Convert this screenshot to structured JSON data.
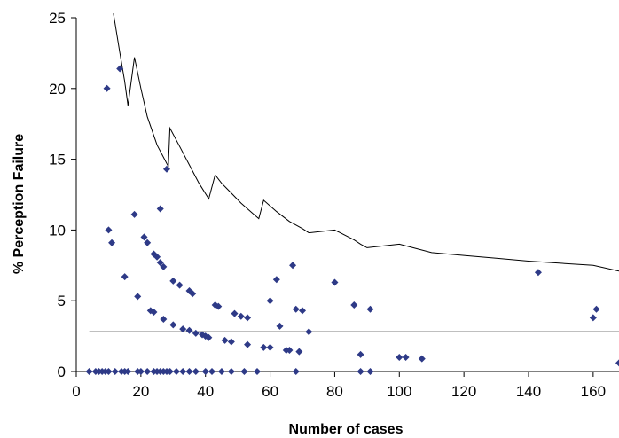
{
  "chart_data": {
    "type": "scatter",
    "title": "",
    "xlabel": "Number of cases",
    "ylabel": "% Perception Failure",
    "xlim": [
      0,
      168
    ],
    "ylim": [
      0,
      25
    ],
    "xticks": [
      0,
      20,
      40,
      60,
      80,
      100,
      120,
      140,
      160
    ],
    "yticks": [
      0,
      5,
      10,
      15,
      20,
      25
    ],
    "grid": false,
    "legend": "none",
    "colors": {
      "points": "#2e3a87",
      "lines": "#000000",
      "axis": "#000000"
    },
    "series": [
      {
        "type": "scatter",
        "points": [
          [
            4,
            0
          ],
          [
            6,
            0
          ],
          [
            7,
            0
          ],
          [
            8,
            0
          ],
          [
            9,
            0
          ],
          [
            10,
            0
          ],
          [
            12,
            0
          ],
          [
            14,
            0
          ],
          [
            15,
            0
          ],
          [
            16,
            0
          ],
          [
            19,
            0
          ],
          [
            20,
            0
          ],
          [
            22,
            0
          ],
          [
            24,
            0
          ],
          [
            25,
            0
          ],
          [
            26,
            0
          ],
          [
            27,
            0
          ],
          [
            28,
            0
          ],
          [
            29,
            0
          ],
          [
            31,
            0
          ],
          [
            33,
            0
          ],
          [
            35,
            0
          ],
          [
            37,
            0
          ],
          [
            40,
            0
          ],
          [
            42,
            0
          ],
          [
            45,
            0
          ],
          [
            48,
            0
          ],
          [
            52,
            0
          ],
          [
            56,
            0
          ],
          [
            68,
            0
          ],
          [
            88,
            0
          ],
          [
            91,
            0
          ],
          [
            9.5,
            20
          ],
          [
            13.5,
            21.4
          ],
          [
            28,
            14.3
          ],
          [
            10,
            10
          ],
          [
            11,
            9.1
          ],
          [
            18,
            11.1
          ],
          [
            26,
            11.5
          ],
          [
            21,
            9.5
          ],
          [
            22,
            9.1
          ],
          [
            24,
            8.3
          ],
          [
            25,
            8.1
          ],
          [
            26,
            7.7
          ],
          [
            27,
            7.4
          ],
          [
            15,
            6.7
          ],
          [
            30,
            6.4
          ],
          [
            32,
            6.1
          ],
          [
            35,
            5.7
          ],
          [
            36,
            5.5
          ],
          [
            19,
            5.3
          ],
          [
            43,
            4.7
          ],
          [
            44,
            4.6
          ],
          [
            49,
            4.1
          ],
          [
            51,
            3.9
          ],
          [
            53,
            3.8
          ],
          [
            23,
            4.3
          ],
          [
            24,
            4.2
          ],
          [
            27,
            3.7
          ],
          [
            30,
            3.3
          ],
          [
            33,
            3.0
          ],
          [
            35,
            2.9
          ],
          [
            37,
            2.7
          ],
          [
            39,
            2.6
          ],
          [
            40,
            2.5
          ],
          [
            41,
            2.4
          ],
          [
            46,
            2.2
          ],
          [
            48,
            2.1
          ],
          [
            53,
            1.9
          ],
          [
            58,
            1.7
          ],
          [
            60,
            1.7
          ],
          [
            65,
            1.5
          ],
          [
            66,
            1.5
          ],
          [
            69,
            1.4
          ],
          [
            60,
            5.0
          ],
          [
            62,
            6.5
          ],
          [
            63,
            3.2
          ],
          [
            67,
            7.5
          ],
          [
            68,
            4.4
          ],
          [
            70,
            4.3
          ],
          [
            72,
            2.8
          ],
          [
            80,
            6.3
          ],
          [
            86,
            4.7
          ],
          [
            88,
            1.2
          ],
          [
            91,
            4.4
          ],
          [
            100,
            1.0
          ],
          [
            102,
            1.0
          ],
          [
            107,
            0.9
          ],
          [
            143,
            7.0
          ],
          [
            160,
            3.8
          ],
          [
            161,
            4.4
          ],
          [
            168,
            0.6
          ]
        ]
      },
      {
        "type": "line",
        "points": [
          [
            11.5,
            25.3
          ],
          [
            13.5,
            22.5
          ],
          [
            15,
            20.5
          ],
          [
            16,
            18.8
          ],
          [
            18,
            22.2
          ],
          [
            20,
            20.0
          ],
          [
            22,
            18.0
          ],
          [
            25,
            16.0
          ],
          [
            28,
            14.7
          ],
          [
            28.5,
            14.5
          ],
          [
            29,
            17.2
          ],
          [
            32,
            15.9
          ],
          [
            35,
            14.6
          ],
          [
            38,
            13.3
          ],
          [
            41,
            12.2
          ],
          [
            43,
            13.9
          ],
          [
            45,
            13.3
          ],
          [
            48,
            12.6
          ],
          [
            51,
            11.9
          ],
          [
            54,
            11.3
          ],
          [
            56.5,
            10.8
          ],
          [
            58,
            12.1
          ],
          [
            62,
            11.3
          ],
          [
            66,
            10.6
          ],
          [
            70,
            10.1
          ],
          [
            72,
            9.8
          ],
          [
            80,
            10.0
          ],
          [
            86,
            9.3
          ],
          [
            88,
            9.0
          ],
          [
            90,
            8.75
          ],
          [
            100,
            9.0
          ],
          [
            110,
            8.4
          ],
          [
            120,
            8.2
          ],
          [
            130,
            8.0
          ],
          [
            140,
            7.8
          ],
          [
            150,
            7.65
          ],
          [
            160,
            7.5
          ],
          [
            168,
            7.1
          ]
        ]
      },
      {
        "type": "line",
        "points": [
          [
            4,
            2.8
          ],
          [
            168,
            2.8
          ]
        ]
      }
    ]
  }
}
